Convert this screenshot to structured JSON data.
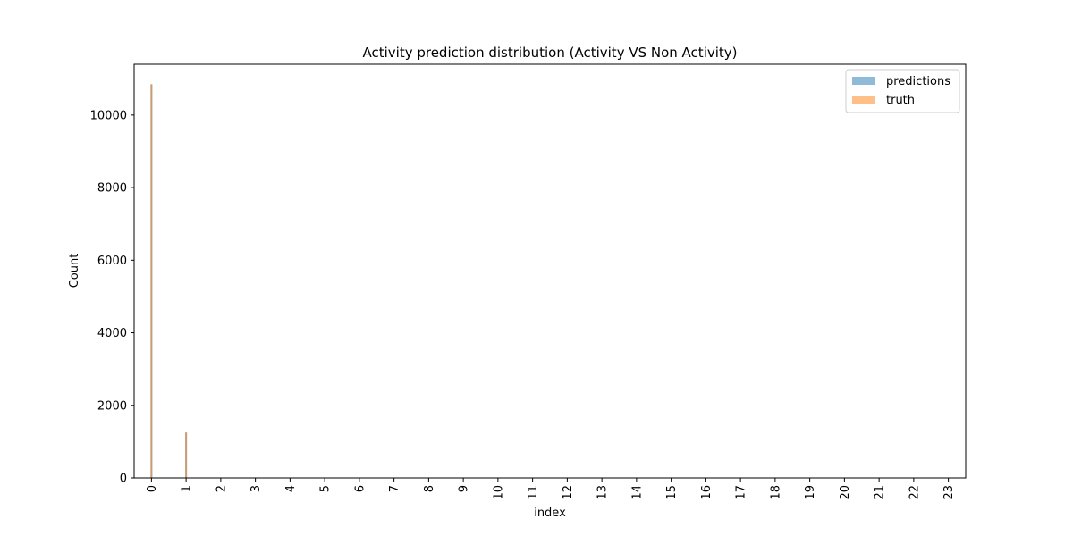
{
  "chart_data": {
    "type": "bar",
    "title": "Activity prediction distribution (Activity VS Non Activity)",
    "xlabel": "index",
    "ylabel": "Count",
    "x_ticks": [
      "0",
      "1",
      "2",
      "3",
      "4",
      "5",
      "6",
      "7",
      "8",
      "9",
      "10",
      "11",
      "12",
      "13",
      "14",
      "15",
      "16",
      "17",
      "18",
      "19",
      "20",
      "21",
      "22",
      "23"
    ],
    "y_ticks": [
      0,
      2000,
      4000,
      6000,
      8000,
      10000
    ],
    "xlim": [
      -0.5,
      23.5
    ],
    "ylim": [
      0,
      11400
    ],
    "grid": false,
    "legend_position": "top-right",
    "series": [
      {
        "name": "predictions",
        "color": "#1f77b4",
        "opacity": 0.5,
        "x": [
          0,
          1
        ],
        "values": [
          10850,
          1250
        ]
      },
      {
        "name": "truth",
        "color": "#ff7f0e",
        "opacity": 0.5,
        "x": [
          0,
          1
        ],
        "values": [
          10850,
          1250
        ]
      }
    ]
  }
}
